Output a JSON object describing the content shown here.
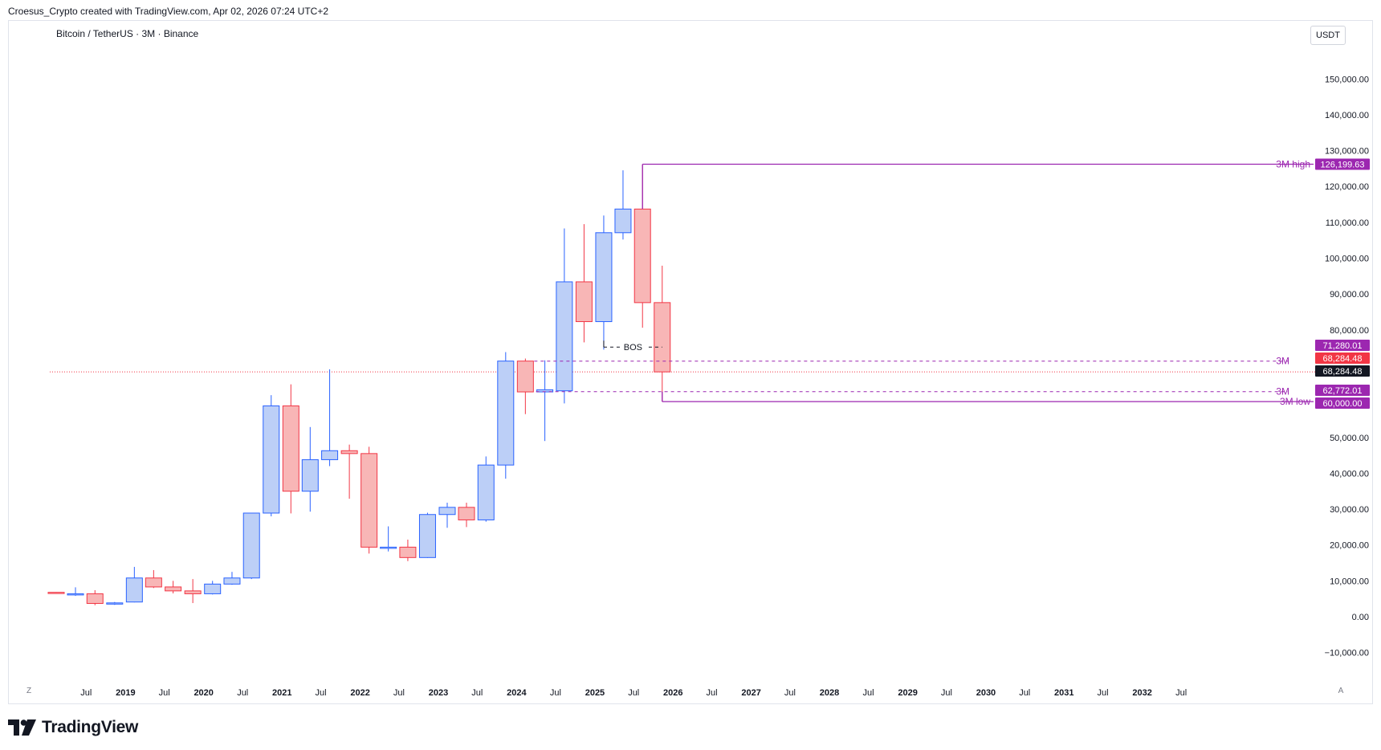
{
  "header": {
    "caption": "Croesus_Crypto created with TradingView.com, Apr 02, 2026 07:24 UTC+2",
    "symbol": "Bitcoin / TetherUS · 3M · Binance",
    "currency": "USDT",
    "corner_left": "Z",
    "corner_right": "A"
  },
  "footer": {
    "brand": "TradingView"
  },
  "colors": {
    "up_fill": "#bccff7",
    "up_stroke": "#2962ff",
    "down_fill": "#f8b6b6",
    "down_stroke": "#f23645",
    "annotation": "#9c27b0",
    "grid_text": "#131722"
  },
  "chart_data": {
    "type": "candlestick",
    "title": "Bitcoin / TetherUS · 3M · Binance",
    "ylim": [
      -15000,
      165000
    ],
    "y_ticks": [
      -10000,
      0,
      10000,
      20000,
      30000,
      40000,
      50000,
      80000,
      90000,
      100000,
      110000,
      120000,
      130000,
      140000,
      150000
    ],
    "y_tick_labels": [
      "−10,000.00",
      "0.00",
      "10,000.00",
      "20,000.00",
      "30,000.00",
      "40,000.00",
      "50,000.00",
      "80,000.00",
      "90,000.00",
      "100,000.00",
      "110,000.00",
      "120,000.00",
      "130,000.00",
      "140,000.00",
      "150,000.00"
    ],
    "x_ticks": [
      {
        "label": "Jul",
        "date": "2018-07-01",
        "bold": false
      },
      {
        "label": "2019",
        "date": "2019-01-01",
        "bold": true
      },
      {
        "label": "Jul",
        "date": "2019-07-01",
        "bold": false
      },
      {
        "label": "2020",
        "date": "2020-01-01",
        "bold": true
      },
      {
        "label": "Jul",
        "date": "2020-07-01",
        "bold": false
      },
      {
        "label": "2021",
        "date": "2021-01-01",
        "bold": true
      },
      {
        "label": "Jul",
        "date": "2021-07-01",
        "bold": false
      },
      {
        "label": "2022",
        "date": "2022-01-01",
        "bold": true
      },
      {
        "label": "Jul",
        "date": "2022-07-01",
        "bold": false
      },
      {
        "label": "2023",
        "date": "2023-01-01",
        "bold": true
      },
      {
        "label": "Jul",
        "date": "2023-07-01",
        "bold": false
      },
      {
        "label": "2024",
        "date": "2024-01-01",
        "bold": true
      },
      {
        "label": "Jul",
        "date": "2024-07-01",
        "bold": false
      },
      {
        "label": "2025",
        "date": "2025-01-01",
        "bold": true
      },
      {
        "label": "Jul",
        "date": "2025-07-01",
        "bold": false
      },
      {
        "label": "2026",
        "date": "2026-01-01",
        "bold": true
      },
      {
        "label": "Jul",
        "date": "2026-07-01",
        "bold": false
      },
      {
        "label": "2027",
        "date": "2027-01-01",
        "bold": true
      },
      {
        "label": "Jul",
        "date": "2027-07-01",
        "bold": false
      },
      {
        "label": "2028",
        "date": "2028-01-01",
        "bold": true
      },
      {
        "label": "Jul",
        "date": "2028-07-01",
        "bold": false
      },
      {
        "label": "2029",
        "date": "2029-01-01",
        "bold": true
      },
      {
        "label": "Jul",
        "date": "2029-07-01",
        "bold": false
      },
      {
        "label": "2030",
        "date": "2030-01-01",
        "bold": true
      },
      {
        "label": "Jul",
        "date": "2030-07-01",
        "bold": false
      },
      {
        "label": "2031",
        "date": "2031-01-01",
        "bold": true
      },
      {
        "label": "Jul",
        "date": "2031-07-01",
        "bold": false
      },
      {
        "label": "2032",
        "date": "2032-01-01",
        "bold": true
      },
      {
        "label": "Jul",
        "date": "2032-07-01",
        "bold": false
      }
    ],
    "candles": [
      {
        "date": "2018-01-01",
        "open": 6800,
        "high": 6850,
        "low": 6600,
        "close": 6650
      },
      {
        "date": "2018-04-01",
        "open": 6200,
        "high": 8200,
        "low": 5800,
        "close": 6400
      },
      {
        "date": "2018-07-01",
        "open": 6400,
        "high": 7400,
        "low": 3200,
        "close": 3700
      },
      {
        "date": "2018-10-01",
        "open": 3700,
        "high": 4100,
        "low": 3300,
        "close": 3850
      },
      {
        "date": "2019-01-01",
        "open": 4100,
        "high": 13900,
        "low": 4000,
        "close": 10800
      },
      {
        "date": "2019-04-01",
        "open": 10800,
        "high": 13000,
        "low": 8000,
        "close": 8300
      },
      {
        "date": "2019-07-01",
        "open": 8300,
        "high": 10000,
        "low": 6500,
        "close": 7200
      },
      {
        "date": "2019-10-01",
        "open": 7200,
        "high": 10500,
        "low": 3800,
        "close": 6400
      },
      {
        "date": "2020-01-01",
        "open": 6400,
        "high": 10000,
        "low": 6200,
        "close": 9100
      },
      {
        "date": "2020-04-01",
        "open": 9100,
        "high": 12500,
        "low": 8900,
        "close": 10800
      },
      {
        "date": "2020-07-01",
        "open": 10800,
        "high": 29000,
        "low": 10500,
        "close": 28900
      },
      {
        "date": "2020-10-01",
        "open": 28900,
        "high": 61800,
        "low": 28000,
        "close": 58800
      },
      {
        "date": "2021-01-01",
        "open": 58800,
        "high": 64800,
        "low": 28800,
        "close": 35000
      },
      {
        "date": "2021-04-01",
        "open": 35000,
        "high": 52900,
        "low": 29300,
        "close": 43800
      },
      {
        "date": "2021-07-01",
        "open": 43800,
        "high": 69000,
        "low": 42000,
        "close": 46300
      },
      {
        "date": "2021-10-01",
        "open": 46300,
        "high": 48000,
        "low": 32900,
        "close": 45500
      },
      {
        "date": "2022-01-01",
        "open": 45500,
        "high": 47400,
        "low": 17600,
        "close": 19400
      },
      {
        "date": "2022-04-01",
        "open": 19400,
        "high": 25200,
        "low": 18200,
        "close": 19400
      },
      {
        "date": "2022-07-01",
        "open": 19400,
        "high": 21500,
        "low": 15500,
        "close": 16500
      },
      {
        "date": "2022-10-01",
        "open": 16500,
        "high": 29000,
        "low": 16400,
        "close": 28500
      },
      {
        "date": "2023-01-01",
        "open": 28500,
        "high": 31800,
        "low": 24800,
        "close": 30500
      },
      {
        "date": "2023-04-01",
        "open": 30500,
        "high": 31800,
        "low": 25000,
        "close": 27000
      },
      {
        "date": "2023-07-01",
        "open": 27000,
        "high": 44700,
        "low": 26500,
        "close": 42300
      },
      {
        "date": "2023-10-01",
        "open": 42300,
        "high": 73800,
        "low": 38500,
        "close": 71300
      },
      {
        "date": "2024-01-01",
        "open": 71300,
        "high": 72000,
        "low": 56500,
        "close": 62700
      },
      {
        "date": "2024-04-01",
        "open": 62700,
        "high": 71500,
        "low": 49000,
        "close": 63300
      },
      {
        "date": "2024-07-01",
        "open": 63000,
        "high": 108300,
        "low": 59500,
        "close": 93400
      },
      {
        "date": "2024-10-01",
        "open": 93400,
        "high": 109500,
        "low": 76500,
        "close": 82300
      },
      {
        "date": "2025-01-01",
        "open": 82300,
        "high": 111900,
        "low": 74500,
        "close": 107100
      },
      {
        "date": "2025-04-01",
        "open": 107100,
        "high": 124500,
        "low": 105200,
        "close": 113700
      },
      {
        "date": "2025-07-01",
        "open": 113700,
        "high": 126200,
        "low": 80600,
        "close": 87600
      },
      {
        "date": "2025-10-01",
        "open": 87600,
        "high": 97900,
        "low": 60000,
        "close": 68284
      }
    ],
    "annotations": {
      "bos_label": "BOS",
      "bos_value": 75200,
      "high_label": "3M high",
      "high_value": 126199.63,
      "high_tag": "126,199.63",
      "level1_label": "3M",
      "level1_value": 71280.01,
      "level1_tag": "71,280.01",
      "level2_label": "3M",
      "level2_value": 62772.01,
      "level2_tag": "62,772.01",
      "low_label": "3M low",
      "low_value": 60000,
      "low_tag": "60,000.00",
      "last_price": 68284.48,
      "last_price_tag": "68,284.48",
      "close_tag": "68,284.48"
    }
  }
}
